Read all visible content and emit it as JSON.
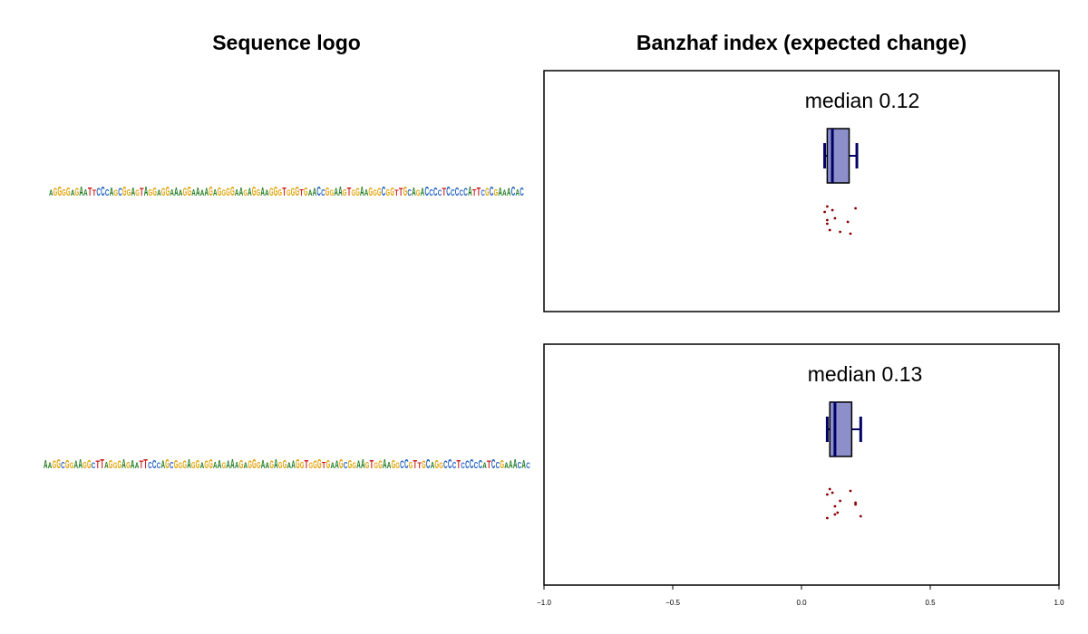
{
  "titles": {
    "left": "Sequence logo",
    "right": "Banzhaf index (expected change)"
  },
  "logos": [
    "AGGGGAGAATTCCCAGCGGAGTAGGAGGAAAGGAAAAGAGGGGAAGAGGAAGGGTGGGTGAACCGGAAGTGGAAGGGCGGTTGCAGACCCCTCCCCCATTCGCGAAACAC",
    "AAGGCGGAAGGCTTAGGGAGAATTCCCAGCGGGAGGAGGAAGAAAGAGGGAAGAGGAAGGTGGGTGAAGCGGAAGTGGAAGGCCGTTGCAGGCCCTCCCCCATCCGAAACAC"
  ],
  "colors": {
    "A": "#1f7a1f",
    "C": "#1f5fbf",
    "G": "#e0a000",
    "T": "#cc2222",
    "box_fill": "#8c8fca",
    "box_stroke": "#000066",
    "outlier": "#8b0000"
  },
  "chart_data": [
    {
      "type": "box",
      "median_label": "median 0.12",
      "median": 0.12,
      "q1": 0.1,
      "q3": 0.185,
      "whisker_low": 0.09,
      "whisker_high": 0.215,
      "outliers": [
        0.1,
        0.13,
        0.11,
        0.21,
        0.1,
        0.15,
        0.12,
        0.18,
        0.19,
        0.09,
        0.1
      ],
      "xlim": [
        -1.0,
        1.0
      ]
    },
    {
      "type": "box",
      "median_label": "median 0.13",
      "median": 0.13,
      "q1": 0.11,
      "q3": 0.195,
      "whisker_low": 0.1,
      "whisker_high": 0.23,
      "outliers": [
        0.11,
        0.15,
        0.14,
        0.19,
        0.21,
        0.13,
        0.12,
        0.21,
        0.23,
        0.1,
        0.13,
        0.1
      ],
      "xlim": [
        -1.0,
        1.0
      ]
    }
  ],
  "xticks": [
    "−1.0",
    "−0.5",
    "0.0",
    "0.5",
    "1.0"
  ]
}
